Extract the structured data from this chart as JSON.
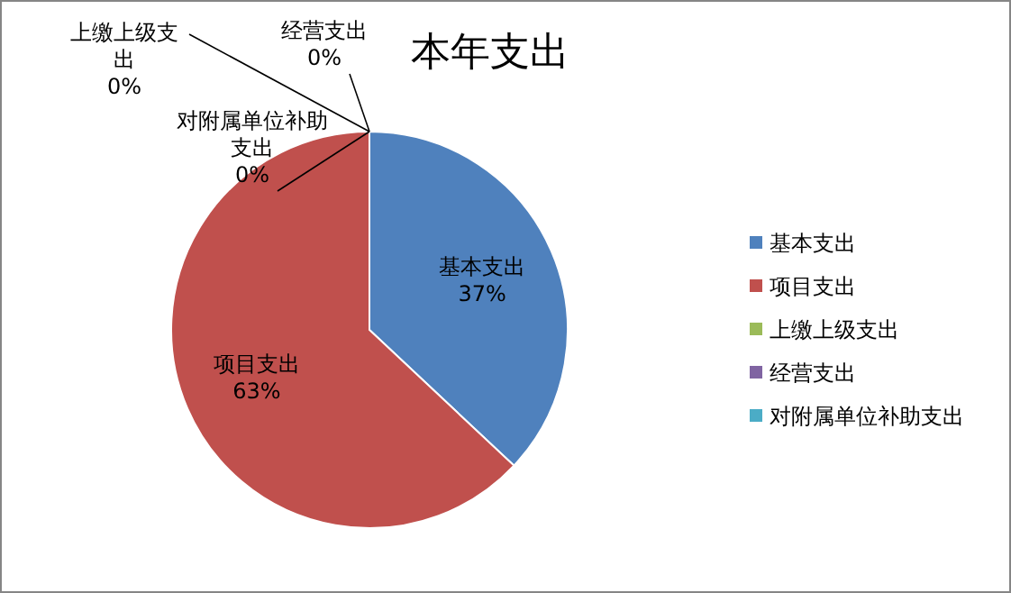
{
  "chart_data": {
    "type": "pie",
    "title": "本年支出",
    "categories": [
      "基本支出",
      "项目支出",
      "上缴上级支出",
      "经营支出",
      "对附属单位补助支出"
    ],
    "values": [
      37,
      63,
      0,
      0,
      0
    ],
    "value_labels": [
      "37%",
      "63%",
      "0%",
      "0%",
      "0%"
    ],
    "colors": [
      "#4f81bd",
      "#c0504d",
      "#9bbb59",
      "#8064a2",
      "#4bacc6"
    ],
    "data_labels": true,
    "legend": "right"
  }
}
